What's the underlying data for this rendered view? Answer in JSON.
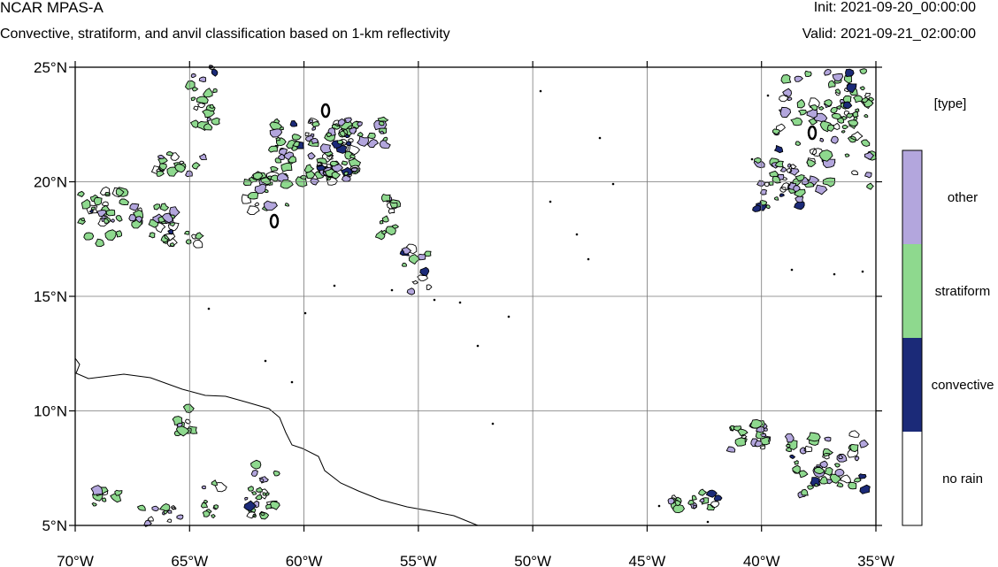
{
  "header": {
    "model_title": "NCAR MPAS-A",
    "subtitle": "Convective, stratiform, and anvil classification based on 1-km reflectivity",
    "init": "Init: 2021-09-20_00:00:00",
    "valid": "Valid: 2021-09-21_02:00:00"
  },
  "map": {
    "lon_range": [
      -70,
      -35
    ],
    "lat_range": [
      5,
      25
    ],
    "grid": true,
    "lon_ticks": [
      {
        "value": -70,
        "label": "70°W"
      },
      {
        "value": -65,
        "label": "65°W"
      },
      {
        "value": -60,
        "label": "60°W"
      },
      {
        "value": -55,
        "label": "55°W"
      },
      {
        "value": -50,
        "label": "50°W"
      },
      {
        "value": -45,
        "label": "45°W"
      },
      {
        "value": -40,
        "label": "40°W"
      },
      {
        "value": -35,
        "label": "35°W"
      }
    ],
    "lat_ticks": [
      {
        "value": 25,
        "label": "25°N"
      },
      {
        "value": 20,
        "label": "20°N"
      },
      {
        "value": 15,
        "label": "15°N"
      },
      {
        "value": 10,
        "label": "10°N"
      },
      {
        "value": 5,
        "label": "5°N"
      }
    ]
  },
  "legend": {
    "title": "[type]",
    "classes": [
      {
        "label": "other",
        "color": "#b3a6dd"
      },
      {
        "label": "stratiform",
        "color": "#8ed98e"
      },
      {
        "label": "convective",
        "color": "#1b2a78"
      },
      {
        "label": "no rain",
        "color": "#ffffff"
      }
    ]
  },
  "chart_data": {
    "type": "heatmap",
    "title": "Convective, stratiform, and anvil classification based on 1-km reflectivity",
    "categories": [
      "other",
      "stratiform",
      "convective",
      "no rain"
    ],
    "xlim": [
      -70,
      -35
    ],
    "ylim": [
      5,
      25
    ],
    "grid": true,
    "legend_placement": "right"
  }
}
